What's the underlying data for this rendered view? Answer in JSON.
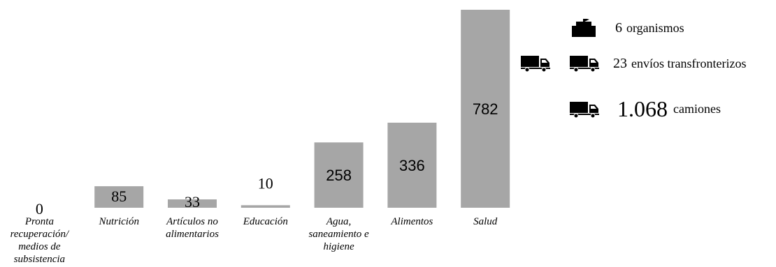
{
  "chart_data": {
    "type": "bar",
    "categories": [
      "Pronta recuperación/ medios de subsistencia",
      "Nutrición",
      "Artículos no alimentarios",
      "Educación",
      "Agua, saneamiento e higiene",
      "Alimentos",
      "Salud"
    ],
    "category_lines": [
      [
        "Pronta",
        "recuperación/",
        "medios de",
        "subsistencia"
      ],
      [
        "Nutrición"
      ],
      [
        "Artículos no",
        "alimentarios"
      ],
      [
        "Educación"
      ],
      [
        "Agua,",
        "saneamiento e",
        "higiene"
      ],
      [
        "Alimentos"
      ],
      [
        "Salud"
      ]
    ],
    "values": [
      0,
      85,
      33,
      10,
      258,
      336,
      782
    ],
    "value_labels": [
      "0",
      "85",
      "33",
      "10",
      "258",
      "336",
      "782"
    ],
    "bar_color": "#a6a6a6",
    "ylim": [
      0,
      782
    ],
    "grid": false
  },
  "legend": {
    "organismos": {
      "number": "6",
      "label": "organismos",
      "icon": "building-flag-icon"
    },
    "envios": {
      "number": "23",
      "label": "envíos transfronterizos",
      "icon": "truck-icon"
    },
    "camiones": {
      "number": "1.068",
      "label": "camiones",
      "icon": "truck-icon"
    }
  },
  "colors": {
    "icon": "#000000",
    "bar": "#a6a6a6"
  }
}
